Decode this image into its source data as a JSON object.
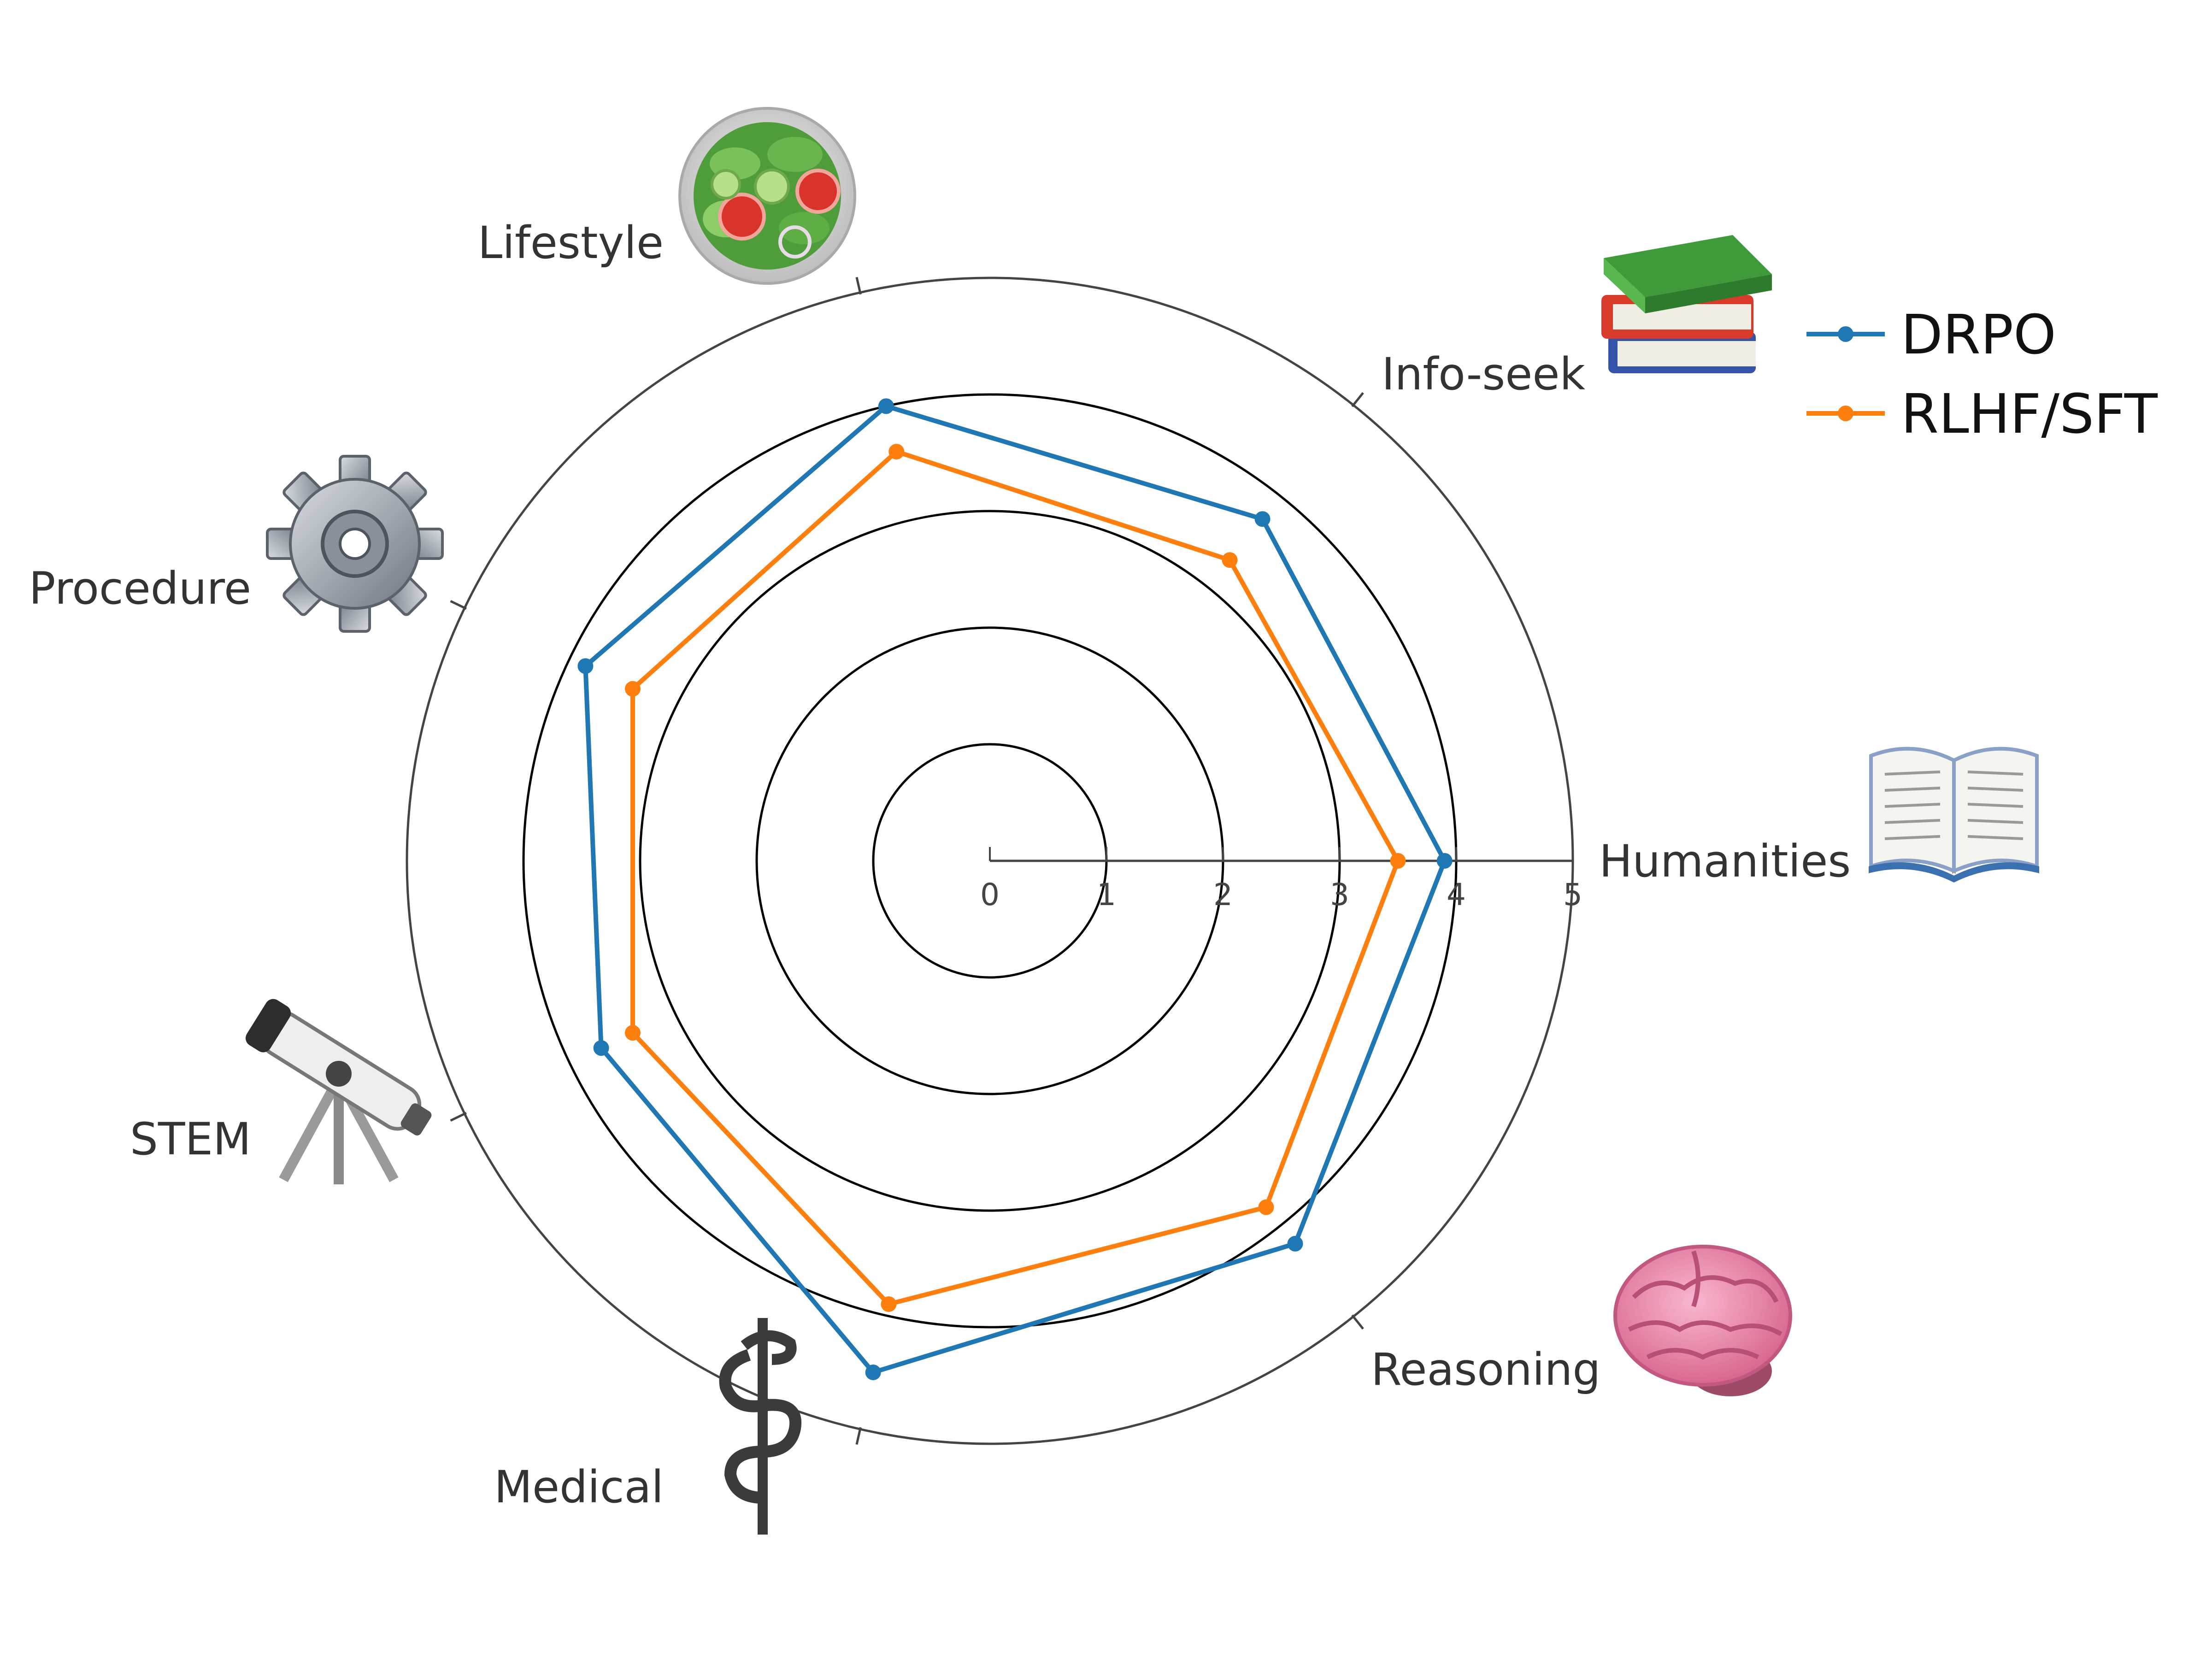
{
  "chart_data": {
    "type": "radar",
    "categories": [
      "Humanities",
      "Info-seek",
      "Lifestyle",
      "Procedure",
      "STEM",
      "Medical",
      "Reasoning"
    ],
    "category_icons": [
      "open-book-icon",
      "books-icon",
      "salad-icon",
      "gear-icon",
      "telescope-icon",
      "medical-symbol-icon",
      "brain-icon"
    ],
    "series": [
      {
        "name": "DRPO",
        "color": "#1f77b4",
        "values": [
          3.9,
          3.75,
          4.0,
          3.85,
          3.7,
          4.5,
          4.2
        ]
      },
      {
        "name": "RLHF/SFT",
        "color": "#ff7f0e",
        "values": [
          3.5,
          3.3,
          3.6,
          3.4,
          3.4,
          3.9,
          3.8
        ]
      }
    ],
    "radial_ticks": [
      "0",
      "1",
      "2",
      "3",
      "4",
      "5"
    ],
    "rlim": [
      0,
      5
    ],
    "grid": true,
    "legend_position": "top-right"
  }
}
